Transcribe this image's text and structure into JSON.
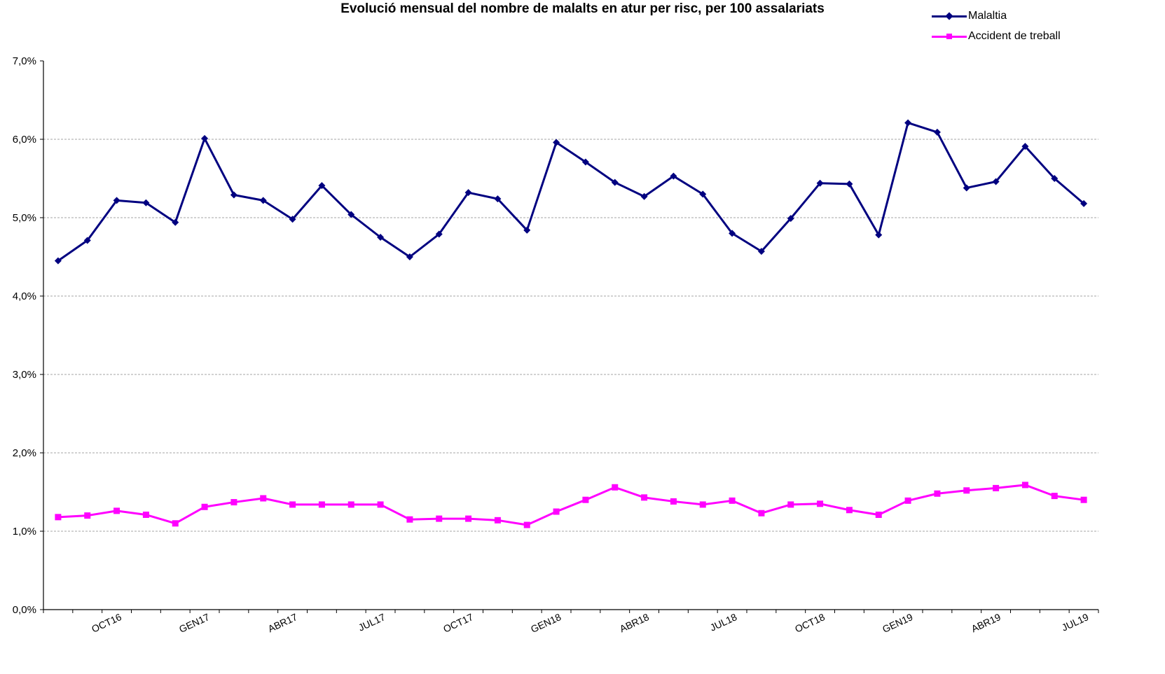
{
  "chart_data": {
    "type": "line",
    "title": "Evolució mensual del nombre de malalts en atur per risc, per 100 assalariats",
    "xlabel": "",
    "ylabel": "",
    "ylim": [
      0,
      7
    ],
    "y_ticks": [
      "0,0%",
      "1,0%",
      "2,0%",
      "3,0%",
      "4,0%",
      "5,0%",
      "6,0%",
      "7,0%"
    ],
    "grid": true,
    "legend_position": "top-right",
    "x_tick_labels": [
      "OCT16",
      "GEN17",
      "ABR17",
      "JUL17",
      "OCT17",
      "GEN18",
      "ABR18",
      "JUL18",
      "OCT18",
      "GEN19",
      "ABR19",
      "JUL19"
    ],
    "x_tick_positions": [
      2,
      5,
      8,
      11,
      14,
      17,
      20,
      23,
      26,
      29,
      32,
      35
    ],
    "series": [
      {
        "name": "Malaltia",
        "color": "#000080",
        "marker": "diamond",
        "values": [
          4.45,
          4.71,
          5.22,
          5.19,
          4.94,
          6.01,
          5.29,
          5.22,
          4.98,
          5.41,
          5.04,
          4.75,
          4.5,
          4.79,
          5.32,
          5.24,
          4.84,
          5.96,
          5.71,
          5.45,
          5.27,
          5.53,
          5.3,
          4.8,
          4.57,
          4.99,
          5.44,
          5.43,
          4.78,
          6.21,
          6.09,
          5.38,
          5.46,
          5.91,
          5.5,
          5.18
        ]
      },
      {
        "name": "Accident de treball",
        "color": "#ff00ff",
        "marker": "square",
        "values": [
          1.18,
          1.2,
          1.26,
          1.21,
          1.1,
          1.31,
          1.37,
          1.42,
          1.34,
          1.34,
          1.34,
          1.34,
          1.15,
          1.16,
          1.16,
          1.14,
          1.08,
          1.25,
          1.4,
          1.56,
          1.43,
          1.38,
          1.34,
          1.39,
          1.23,
          1.34,
          1.35,
          1.27,
          1.21,
          1.39,
          1.48,
          1.52,
          1.55,
          1.59,
          1.45,
          1.4
        ]
      }
    ]
  }
}
